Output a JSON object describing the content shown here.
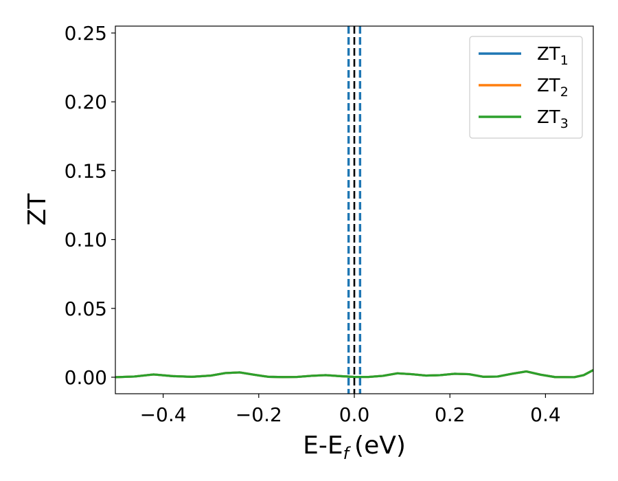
{
  "chart_data": {
    "type": "line",
    "xlabel": "E-E",
    "xlabel_sub": "f",
    "xlabel_unit": "(eV)",
    "ylabel": "ZT",
    "xlim": [
      -0.5,
      0.5
    ],
    "ylim": [
      -0.012,
      0.255
    ],
    "xticks": [
      -0.4,
      -0.2,
      0.0,
      0.2,
      0.4
    ],
    "xtick_labels": [
      "−0.4",
      "−0.2",
      "0.0",
      "0.2",
      "0.4"
    ],
    "yticks": [
      0.0,
      0.05,
      0.1,
      0.15,
      0.2,
      0.25
    ],
    "ytick_labels": [
      "0.00",
      "0.05",
      "0.10",
      "0.15",
      "0.20",
      "0.25"
    ],
    "legend_position": "upper-right",
    "grid": false,
    "x": [
      -0.5,
      -0.46,
      -0.42,
      -0.38,
      -0.34,
      -0.3,
      -0.27,
      -0.24,
      -0.21,
      -0.18,
      -0.15,
      -0.12,
      -0.09,
      -0.06,
      -0.03,
      0.0,
      0.03,
      0.06,
      0.09,
      0.12,
      0.15,
      0.18,
      0.21,
      0.24,
      0.27,
      0.3,
      0.33,
      0.36,
      0.39,
      0.42,
      0.46,
      0.48,
      0.5
    ],
    "series": [
      {
        "name": "ZT",
        "sub": "1",
        "color": "#1f77b4",
        "values": [
          0.0,
          0.0005,
          0.002,
          0.0008,
          0.0003,
          0.0012,
          0.003,
          0.0035,
          0.0018,
          0.0003,
          0.0001,
          0.0002,
          0.001,
          0.0015,
          0.0008,
          0.0002,
          0.0002,
          0.001,
          0.0028,
          0.0022,
          0.0012,
          0.0015,
          0.0025,
          0.0022,
          0.0003,
          0.0005,
          0.0025,
          0.0042,
          0.0018,
          0.0001,
          0.0,
          0.0015,
          0.0052
        ]
      },
      {
        "name": "ZT",
        "sub": "2",
        "color": "#ff7f0e",
        "values": [
          0.0,
          0.0005,
          0.002,
          0.0008,
          0.0003,
          0.0012,
          0.003,
          0.0035,
          0.0018,
          0.0003,
          0.0001,
          0.0002,
          0.001,
          0.0015,
          0.0008,
          0.0002,
          0.0002,
          0.001,
          0.0028,
          0.0022,
          0.0012,
          0.0015,
          0.0025,
          0.0022,
          0.0003,
          0.0005,
          0.0025,
          0.0042,
          0.0018,
          0.0001,
          0.0,
          0.0015,
          0.0052
        ]
      },
      {
        "name": "ZT",
        "sub": "3",
        "color": "#2ca02c",
        "values": [
          0.0,
          0.0005,
          0.002,
          0.0008,
          0.0003,
          0.0012,
          0.003,
          0.0035,
          0.0018,
          0.0003,
          0.0001,
          0.0002,
          0.001,
          0.0015,
          0.0008,
          0.0002,
          0.0002,
          0.001,
          0.0028,
          0.0022,
          0.0012,
          0.0015,
          0.0025,
          0.0022,
          0.0003,
          0.0005,
          0.0025,
          0.0042,
          0.0018,
          0.0001,
          0.0,
          0.0015,
          0.0052
        ]
      }
    ],
    "vlines": [
      {
        "x": -0.012,
        "color": "#1f77b4",
        "style": "dashed"
      },
      {
        "x": 0.0,
        "color": "#000000",
        "style": "dashed"
      },
      {
        "x": 0.012,
        "color": "#1f77b4",
        "style": "dashed"
      }
    ]
  }
}
